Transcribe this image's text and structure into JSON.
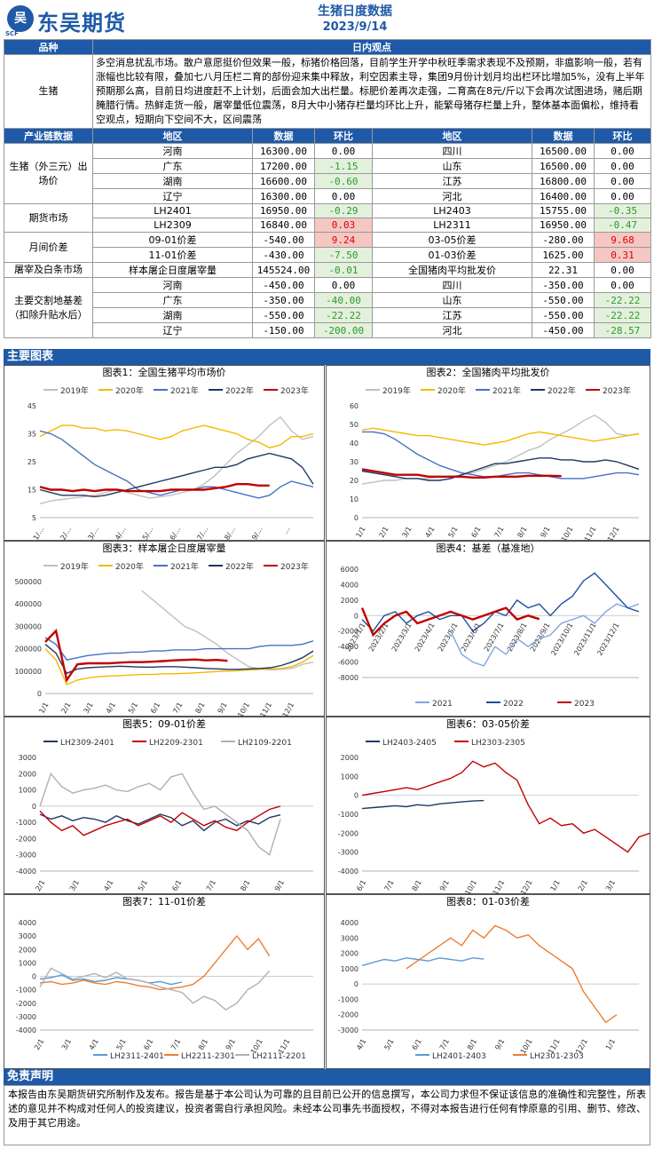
{
  "header": {
    "logo_text": "东吴期货",
    "logo_sub": "SCF",
    "title": "生猪日度数据",
    "date": "2023/9/14"
  },
  "view": {
    "col1": "品种",
    "col2": "日内观点",
    "product": "生猪",
    "text": "多空消息扰乱市场。散户意愿挺价但效果一般，标猪价格回落，目前学生开学中秋旺季需求表现不及预期，非瘟影响一般，若有涨幅也比较有限，叠加七八月压栏二育的部份迎来集中释放，利空因素主导，集团9月份计划月均出栏环比增加5%，没有上半年预期那么高，目前日均进度赶不上计划，后面会加大出栏量。标肥价差再次走强，二育高在8元/斤以下会再次试图进场，赌后期腌腊行情。热鲜走货一般，屠宰量低位震荡，8月大中小猪存栏量均环比上升，能繁母猪存栏量上升，整体基本面偏松，维持看空观点，短期向下空间不大，区间震荡"
  },
  "chain_header": {
    "c1": "产业链数据",
    "c2": "地区",
    "c3": "数据",
    "c4": "环比",
    "c5": "地区",
    "c6": "数据",
    "c7": "环比"
  },
  "sections": [
    {
      "label": "生猪（外三元）出场价",
      "rows": [
        [
          "河南",
          "16300.00",
          "0.00",
          "",
          "四川",
          "16500.00",
          "0.00",
          ""
        ],
        [
          "广东",
          "17200.00",
          "-1.15",
          "neg",
          "山东",
          "16500.00",
          "0.00",
          ""
        ],
        [
          "湖南",
          "16600.00",
          "-0.60",
          "neg",
          "江苏",
          "16800.00",
          "0.00",
          ""
        ],
        [
          "辽宁",
          "16300.00",
          "0.00",
          "",
          "河北",
          "16400.00",
          "0.00",
          ""
        ]
      ]
    },
    {
      "label": "期货市场",
      "rows": [
        [
          "LH2401",
          "16950.00",
          "-0.29",
          "neg",
          "LH2403",
          "15755.00",
          "-0.35",
          "neg"
        ],
        [
          "LH2309",
          "16840.00",
          "0.03",
          "pos",
          "LH2311",
          "16950.00",
          "-0.47",
          "neg"
        ]
      ]
    },
    {
      "label": "月间价差",
      "rows": [
        [
          "09-01价差",
          "-540.00",
          "9.24",
          "pos",
          "03-05价差",
          "-280.00",
          "9.68",
          "pos"
        ],
        [
          "11-01价差",
          "-430.00",
          "-7.50",
          "neg",
          "01-03价差",
          "1625.00",
          "0.31",
          "pos"
        ]
      ]
    },
    {
      "label": "屠宰及白条市场",
      "rows": [
        [
          "样本屠企日度屠宰量",
          "145524.00",
          "-0.01",
          "neg",
          "全国猪肉平均批发价",
          "22.31",
          "0.00",
          ""
        ]
      ]
    },
    {
      "label": "主要交割地基差（扣除升贴水后）",
      "rows": [
        [
          "河南",
          "-450.00",
          "0.00",
          "",
          "四川",
          "-350.00",
          "0.00",
          ""
        ],
        [
          "广东",
          "-350.00",
          "-40.00",
          "neg",
          "山东",
          "-550.00",
          "-22.22",
          "neg"
        ],
        [
          "湖南",
          "-550.00",
          "-22.22",
          "neg",
          "江苏",
          "-550.00",
          "-22.22",
          "neg"
        ],
        [
          "辽宁",
          "-150.00",
          "-200.00",
          "neg",
          "河北",
          "-450.00",
          "-28.57",
          "neg"
        ]
      ]
    }
  ],
  "charts_section_label": "主要图表",
  "charts": [
    {
      "title": "图表1：全国生猪平均市场价",
      "type": "line",
      "legend": [
        "2019年",
        "2020年",
        "2021年",
        "2022年",
        "2023年"
      ],
      "colors": [
        "#c0c0c0",
        "#f5b800",
        "#4472c4",
        "#1f3864",
        "#c00000"
      ],
      "yticks": [
        "45",
        "35",
        "25",
        "15",
        "5"
      ],
      "ylim": [
        5,
        45
      ],
      "xticks": [
        "1/…",
        "2/…",
        "3/…",
        "4/…",
        "5/…",
        "6/…",
        "7/…",
        "8/…",
        "9/…",
        "…"
      ],
      "series": [
        [
          10,
          11,
          11.5,
          12,
          12.5,
          13,
          14,
          15,
          14,
          13,
          12,
          12.5,
          13,
          14,
          15,
          17,
          20,
          24,
          28,
          31,
          34,
          38,
          41,
          36,
          33,
          34
        ],
        [
          34,
          36,
          38,
          38,
          37,
          37,
          36,
          36.5,
          36,
          35,
          34,
          33,
          34,
          36,
          37,
          38,
          37,
          36,
          35,
          33,
          32,
          30,
          31,
          34,
          34,
          35
        ],
        [
          36,
          35,
          33,
          30,
          27,
          24,
          22,
          20,
          18,
          15,
          14,
          13,
          14,
          15,
          15,
          16,
          16,
          15,
          14,
          13,
          12,
          13,
          16,
          18,
          17,
          16
        ],
        [
          15,
          14,
          13,
          13,
          13,
          12.5,
          13,
          14,
          15,
          16,
          17,
          18,
          19,
          20,
          21,
          22,
          23,
          23,
          24,
          26,
          27,
          28,
          27,
          26,
          23,
          17
        ],
        [
          16,
          15,
          15,
          14.5,
          15,
          14.5,
          15,
          15,
          14.5,
          14.5,
          14.5,
          14.5,
          15,
          15,
          15,
          15,
          15.5,
          16,
          17,
          17,
          16.5,
          16.5
        ]
      ]
    },
    {
      "title": "图表2：全国猪肉平均批发价",
      "type": "line",
      "legend": [
        "2019年",
        "2020年",
        "2021年",
        "2022年",
        "2023年"
      ],
      "colors": [
        "#c0c0c0",
        "#f5b800",
        "#4472c4",
        "#1f3864",
        "#c00000"
      ],
      "yticks": [
        "60",
        "50",
        "40",
        "30",
        "20",
        "10",
        "0"
      ],
      "ylim": [
        0,
        60
      ],
      "xticks": [
        "1/1",
        "2/1",
        "3/1",
        "4/1",
        "5/1",
        "6/1",
        "7/1",
        "8/1",
        "9/1",
        "10/1",
        "11/1",
        "12/1"
      ],
      "series": [
        [
          18,
          19,
          20,
          20,
          21,
          21,
          21,
          22,
          22,
          23,
          24,
          26,
          28,
          30,
          33,
          36,
          38,
          42,
          45,
          48,
          52,
          55,
          51,
          45,
          44,
          45
        ],
        [
          47,
          48,
          47,
          46,
          45,
          44,
          44,
          43,
          42,
          41,
          40,
          39,
          40,
          41,
          43,
          45,
          46,
          45,
          44,
          43,
          42,
          41,
          42,
          43,
          44,
          45
        ],
        [
          46,
          46,
          45,
          42,
          38,
          34,
          31,
          28,
          26,
          24,
          23,
          22,
          22,
          23,
          24,
          24,
          23,
          22,
          21,
          21,
          21,
          22,
          23,
          24,
          24,
          23
        ],
        [
          25,
          24,
          23,
          22,
          21,
          21,
          20,
          20,
          21,
          23,
          25,
          27,
          29,
          29,
          30,
          31,
          32,
          32,
          31,
          31,
          30,
          30,
          31,
          30,
          28,
          26
        ],
        [
          26,
          25,
          24,
          23,
          23,
          23,
          22,
          22,
          22,
          22,
          21.5,
          21.5,
          22,
          22,
          22,
          22.5,
          22.5,
          22.5,
          22.3
        ]
      ]
    },
    {
      "title": "图表3：样本屠企日度屠宰量",
      "type": "line",
      "legend": [
        "2019年",
        "2020年",
        "2021年",
        "2022年",
        "2023年"
      ],
      "colors": [
        "#c0c0c0",
        "#f5b800",
        "#4472c4",
        "#1f3864",
        "#c00000"
      ],
      "yticks": [
        "500000",
        "400000",
        "300000",
        "200000",
        "100000",
        "0"
      ],
      "ylim": [
        0,
        500000
      ],
      "xticks": [
        "1/1",
        "2/1",
        "3/1",
        "4/1",
        "5/1",
        "6/1",
        "7/1",
        "8/1",
        "9/1",
        "10/1",
        "11/1",
        "12/1"
      ],
      "series": [
        [
          null,
          null,
          null,
          null,
          null,
          null,
          null,
          null,
          null,
          460000,
          420000,
          380000,
          340000,
          300000,
          280000,
          250000,
          220000,
          180000,
          150000,
          120000,
          110000,
          105000,
          108000,
          112000,
          130000,
          140000
        ],
        [
          200000,
          150000,
          40000,
          60000,
          70000,
          75000,
          78000,
          80000,
          82000,
          85000,
          85000,
          88000,
          88000,
          90000,
          92000,
          95000,
          98000,
          100000,
          102000,
          105000,
          108000,
          110000,
          112000,
          120000,
          140000,
          170000
        ],
        [
          250000,
          220000,
          150000,
          160000,
          170000,
          175000,
          180000,
          180000,
          185000,
          185000,
          190000,
          190000,
          195000,
          195000,
          195000,
          200000,
          200000,
          200000,
          200000,
          200000,
          210000,
          215000,
          215000,
          215000,
          220000,
          235000
        ],
        [
          220000,
          180000,
          90000,
          110000,
          115000,
          118000,
          120000,
          122000,
          120000,
          118000,
          118000,
          120000,
          120000,
          118000,
          115000,
          112000,
          110000,
          108000,
          108000,
          110000,
          112000,
          115000,
          125000,
          140000,
          160000,
          190000
        ],
        [
          230000,
          280000,
          60000,
          130000,
          135000,
          135000,
          135000,
          138000,
          140000,
          140000,
          142000,
          145000,
          148000,
          150000,
          152000,
          148000,
          150000,
          146000
        ]
      ]
    },
    {
      "title": "图表4：基差（基准地）",
      "type": "line",
      "legend": [
        "2021",
        "2022",
        "2023"
      ],
      "colors": [
        "#7ea6e0",
        "#1f4e9e",
        "#c00000"
      ],
      "yticks": [
        "6000",
        "4000",
        "2000",
        "0",
        "-2000",
        "-4000",
        "-6000",
        "-8000"
      ],
      "ylim": [
        -8000,
        6000
      ],
      "xticks": [
        "2023/1/1",
        "2023/2/1",
        "2023/3/1",
        "2023/4/1",
        "2023/5/1",
        "2023/6/1",
        "2023/7/1",
        "2023/8/1",
        "2023/9/1",
        "2023/10/1",
        "2023/11/1",
        "2023/12/1"
      ],
      "series": [
        [
          null,
          null,
          null,
          null,
          null,
          null,
          null,
          null,
          -2000,
          -5000,
          -6000,
          -6500,
          -4000,
          -5000,
          -3000,
          -4000,
          -3000,
          -2500,
          -1000,
          -500,
          0,
          -1000,
          500,
          1500,
          1000,
          1500
        ],
        [
          -500,
          -2000,
          0,
          500,
          -1000,
          0,
          500,
          -500,
          0,
          0,
          -2000,
          -1000,
          500,
          0,
          2000,
          1000,
          1500,
          0,
          1500,
          2500,
          4500,
          5500,
          4000,
          2500,
          1000,
          500
        ],
        [
          1000,
          -2500,
          -1000,
          0,
          500,
          -1000,
          -500,
          0,
          500,
          0,
          -500,
          0,
          500,
          1000,
          -500,
          0,
          -450
        ]
      ]
    },
    {
      "title": "图表5：09-01价差",
      "type": "line",
      "legend": [
        "LH2309-2401",
        "LH2209-2301",
        "LH2109-2201"
      ],
      "colors": [
        "#1f3864",
        "#c00000",
        "#b0b0b0"
      ],
      "yticks": [
        "3000",
        "2000",
        "1000",
        "0",
        "-1000",
        "-2000",
        "-3000",
        "-4000"
      ],
      "ylim": [
        -4000,
        3000
      ],
      "xticks": [
        "2/1",
        "3/1",
        "4/1",
        "5/1",
        "6/1",
        "7/1",
        "8/1",
        "9/1"
      ],
      "series": [
        [
          -500,
          -800,
          -600,
          -900,
          -700,
          -800,
          -1000,
          -600,
          -900,
          -1100,
          -800,
          -500,
          -700,
          -1200,
          -900,
          -1500,
          -1000,
          -800,
          -1200,
          -900,
          -1100,
          -700,
          -540
        ],
        [
          -300,
          -1000,
          -1500,
          -1200,
          -1800,
          -1500,
          -1200,
          -1000,
          -800,
          -1200,
          -900,
          -600,
          -1000,
          -400,
          -800,
          -1200,
          -900,
          -1300,
          -1500,
          -1000,
          -600,
          -200,
          0
        ],
        [
          0,
          2000,
          1200,
          800,
          1000,
          1100,
          1300,
          1000,
          900,
          1200,
          1400,
          1000,
          1800,
          2000,
          800,
          -200,
          0,
          -500,
          -1000,
          -1500,
          -2500,
          -3000,
          -800
        ]
      ]
    },
    {
      "title": "图表6：03-05价差",
      "type": "line",
      "legend": [
        "LH2403-2405",
        "LH2303-2305"
      ],
      "colors": [
        "#1f3864",
        "#c00000"
      ],
      "yticks": [
        "2000",
        "1000",
        "0",
        "-1000",
        "-2000",
        "-3000",
        "-4000"
      ],
      "ylim": [
        -4000,
        2000
      ],
      "xticks": [
        "6/1",
        "7/1",
        "8/1",
        "9/1",
        "10/1",
        "11/1",
        "12/1",
        "1/1",
        "2/1",
        "3/1"
      ],
      "series": [
        [
          -700,
          -650,
          -600,
          -550,
          -600,
          -500,
          -550,
          -450,
          -400,
          -350,
          -300,
          -280
        ],
        [
          0,
          100,
          200,
          300,
          400,
          300,
          500,
          700,
          900,
          1200,
          1800,
          1500,
          1700,
          1200,
          800,
          -500,
          -1500,
          -1200,
          -1600,
          -1500,
          -2000,
          -1800,
          -2200,
          -2600,
          -3000,
          -2200,
          -2000
        ]
      ]
    },
    {
      "title": "图表7：11-01价差",
      "type": "line",
      "legend": [
        "LH2311-2401",
        "LH2211-2301",
        "LH2111-2201"
      ],
      "colors": [
        "#5b9bd5",
        "#ed7d31",
        "#b0b0b0"
      ],
      "yticks": [
        "4000",
        "3000",
        "2000",
        "1000",
        "0",
        "-1000",
        "-2000",
        "-3000",
        "-4000"
      ],
      "ylim": [
        -4000,
        4000
      ],
      "xticks": [
        "2/1",
        "3/1",
        "4/1",
        "5/1",
        "6/1",
        "7/1",
        "8/1",
        "9/1",
        "10/1",
        "11/1"
      ],
      "series": [
        [
          -200,
          -100,
          100,
          -300,
          -200,
          -400,
          -300,
          -100,
          -200,
          -300,
          -500,
          -400,
          -600,
          -430
        ],
        [
          -500,
          -400,
          -600,
          -500,
          -300,
          -500,
          -600,
          -400,
          -500,
          -700,
          -800,
          -1000,
          -900,
          -800,
          -600,
          0,
          1000,
          2000,
          3000,
          2000,
          2800,
          1500
        ],
        [
          -800,
          600,
          200,
          -200,
          0,
          200,
          -100,
          300,
          -200,
          -300,
          -500,
          -800,
          -1000,
          -1200,
          -2000,
          -1500,
          -1800,
          -2500,
          -2000,
          -1000,
          -500,
          400
        ]
      ]
    },
    {
      "title": "图表8：01-03价差",
      "type": "line",
      "legend": [
        "LH2401-2403",
        "LH2301-2303"
      ],
      "colors": [
        "#5b9bd5",
        "#ed7d31"
      ],
      "yticks": [
        "4000",
        "3000",
        "2000",
        "1000",
        "0",
        "-1000",
        "-2000",
        "-3000"
      ],
      "ylim": [
        -3000,
        4000
      ],
      "xticks": [
        "4/1",
        "5/1",
        "6/1",
        "7/1",
        "8/1",
        "9/1",
        "10/1",
        "11/1",
        "12/1",
        "1/1"
      ],
      "series": [
        [
          1200,
          1400,
          1600,
          1500,
          1700,
          1600,
          1500,
          1700,
          1600,
          1500,
          1700,
          1625
        ],
        [
          null,
          null,
          null,
          null,
          1000,
          1500,
          2000,
          2500,
          3000,
          2500,
          3500,
          3000,
          3800,
          3500,
          3000,
          3200,
          2500,
          2000,
          1500,
          1000,
          -500,
          -1500,
          -2500,
          -2000
        ]
      ]
    }
  ],
  "disclaimer": {
    "label": "免责声明",
    "text": "本报告由东吴期货研究所制作及发布。报告是基于本公司认为可靠的且目前已公开的信息撰写，本公司力求但不保证该信息的准确性和完整性，所表述的意见并不构成对任何人的投资建议，投资者需自行承担风险。未经本公司事先书面授权，不得对本报告进行任何有悖原意的引用、删节、修改、及用于其它用途。"
  }
}
